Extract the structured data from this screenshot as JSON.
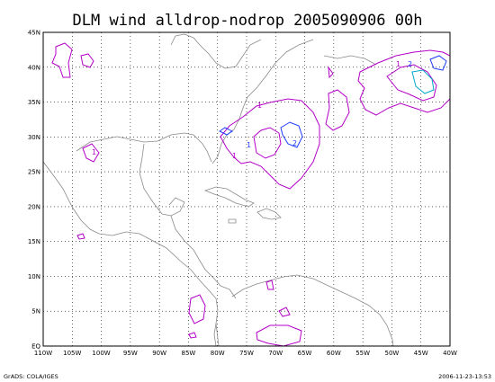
{
  "title": "DLM wind alldrop-nodrop 2005090906 00h",
  "footer": {
    "left": "GrADS: COLA/IGES",
    "right": "2006-11-23-13:53"
  },
  "map": {
    "lon_labels": [
      "110W",
      "105W",
      "100W",
      "95W",
      "90W",
      "85W",
      "80W",
      "75W",
      "70W",
      "65W",
      "60W",
      "55W",
      "50W",
      "45W",
      "40W"
    ],
    "lat_labels": [
      "EQ",
      "5N",
      "10N",
      "15N",
      "20N",
      "25N",
      "30N",
      "35N",
      "40N",
      "45N"
    ]
  },
  "contour_labels": [
    {
      "text": "1",
      "color": "#b400c8"
    },
    {
      "text": "1",
      "color": "#1e3cff"
    },
    {
      "text": "2",
      "color": "#1e3cff"
    },
    {
      "text": "1",
      "color": "#b400c8"
    },
    {
      "text": "1",
      "color": "#b400c8"
    },
    {
      "text": "2",
      "color": "#1e3cff"
    },
    {
      "text": "1",
      "color": "#b400c8"
    }
  ],
  "colors": {
    "magenta": "#b400c8",
    "blue": "#1e3cff",
    "cyan": "#00aac8",
    "coast": "#8a8a8a"
  }
}
